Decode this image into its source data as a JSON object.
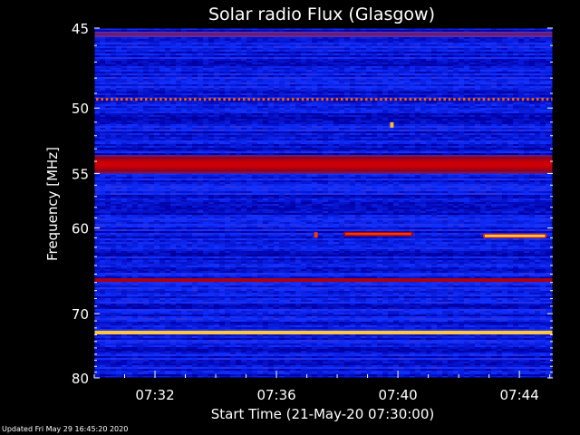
{
  "chart_data": {
    "type": "heatmap",
    "title": "Solar radio Flux (Glasgow)",
    "xlabel": "Start Time (21-May-20 07:30:00)",
    "ylabel": "Frequency [MHz]",
    "x_unit": "minutes after 07:30:00",
    "x_range": [
      0,
      15.1
    ],
    "x_ticks": [
      {
        "minute": 2,
        "label": "07:32"
      },
      {
        "minute": 6,
        "label": "07:36"
      },
      {
        "minute": 10,
        "label": "07:40"
      },
      {
        "minute": 14,
        "label": "07:44"
      }
    ],
    "y_scale": "reciprocal",
    "y_range": [
      45,
      80
    ],
    "y_ticks": [
      45,
      50,
      55,
      60,
      70,
      80
    ],
    "y_minor_ticks": [
      46,
      47,
      48,
      49,
      51,
      52,
      53,
      54,
      56,
      57,
      58,
      59,
      61,
      62,
      63,
      64,
      65,
      66,
      67,
      68,
      69,
      71,
      72,
      73,
      74,
      75,
      76,
      77,
      78,
      79
    ],
    "colormap": [
      "#00004a",
      "#0000a8",
      "#1030ff",
      "#5a30b0",
      "#8a0020",
      "#e00000",
      "#ff6000",
      "#ffd040",
      "#ffffd0"
    ],
    "features": [
      {
        "type": "band",
        "f_low": 53.5,
        "f_high": 55.0,
        "intensity": 0.6
      },
      {
        "type": "band",
        "f_low": 65.5,
        "f_high": 65.9,
        "intensity": 0.6
      },
      {
        "type": "band",
        "f_low": 72.4,
        "f_high": 72.9,
        "intensity": 0.95
      },
      {
        "type": "band",
        "f_low": 45.2,
        "f_high": 45.5,
        "intensity": 0.45
      },
      {
        "type": "dotted",
        "freq": 49.4,
        "intensity": 0.75
      },
      {
        "type": "burst",
        "t_start": 8.2,
        "t_end": 10.5,
        "freq": 60.6,
        "intensity": 0.7
      },
      {
        "type": "burst",
        "t_start": 12.8,
        "t_end": 14.9,
        "freq": 60.8,
        "intensity": 0.9
      },
      {
        "type": "spot",
        "t": 9.8,
        "freq": 51.2,
        "intensity": 0.85
      },
      {
        "type": "spot",
        "t": 7.3,
        "freq": 60.7,
        "intensity": 0.7
      }
    ]
  },
  "footer": "Updated Fri May 29 16:45:20 2020",
  "colors": {
    "background": "#000000",
    "text": "#ffffff"
  }
}
